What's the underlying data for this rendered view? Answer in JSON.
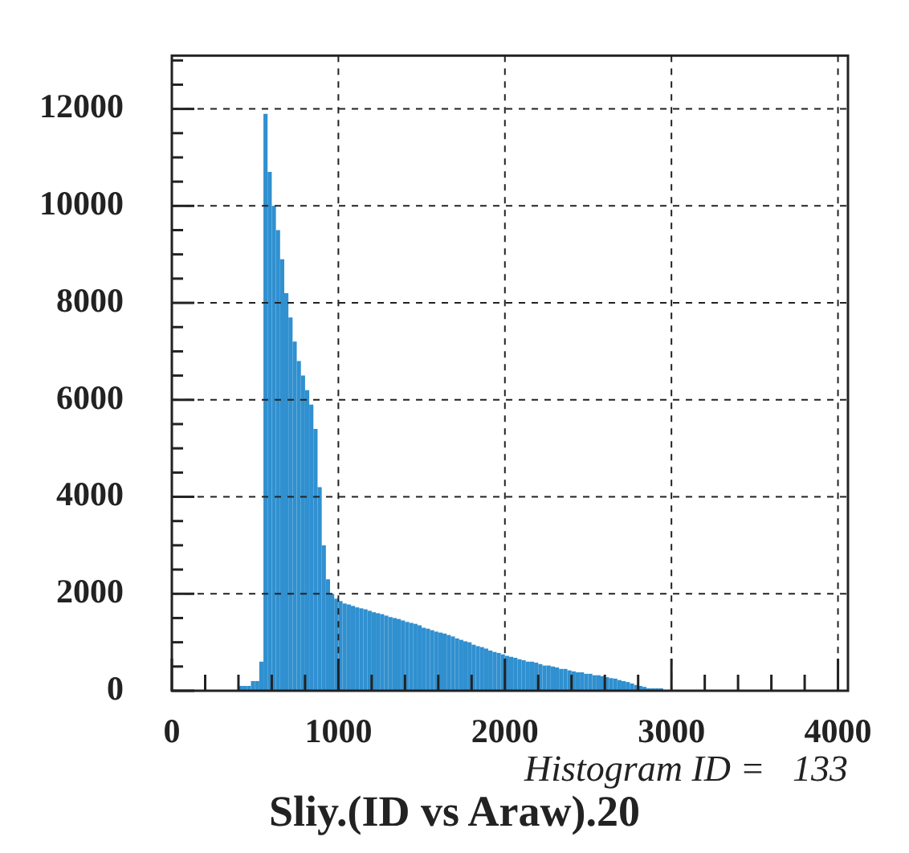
{
  "chart_data": {
    "type": "histogram",
    "title": "Sliy.(ID vs Araw).20",
    "annotations": [
      "Histogram ID =   133"
    ],
    "bins": [
      400,
      425,
      450,
      475,
      500,
      525,
      550,
      575,
      600,
      625,
      650,
      675,
      700,
      725,
      750,
      775,
      800,
      825,
      850,
      875,
      900,
      925,
      950,
      975,
      1000,
      1025,
      1050,
      1075,
      1100,
      1125,
      1150,
      1175,
      1200,
      1225,
      1250,
      1275,
      1300,
      1325,
      1350,
      1375,
      1400,
      1425,
      1450,
      1475,
      1500,
      1525,
      1550,
      1575,
      1600,
      1625,
      1650,
      1675,
      1700,
      1725,
      1750,
      1775,
      1800,
      1825,
      1850,
      1875,
      1900,
      1925,
      1950,
      1975,
      2000,
      2025,
      2050,
      2075,
      2100,
      2125,
      2150,
      2175,
      2200,
      2225,
      2250,
      2275,
      2300,
      2325,
      2350,
      2375,
      2400,
      2425,
      2450,
      2475,
      2500,
      2525,
      2550,
      2575,
      2600,
      2625,
      2650,
      2675,
      2700,
      2725,
      2750,
      2775,
      2800,
      2825,
      2850,
      2875,
      2900,
      2925,
      2950
    ],
    "values": [
      100,
      100,
      100,
      200,
      200,
      600,
      11900,
      10700,
      10000,
      9500,
      8900,
      8200,
      7700,
      7200,
      6800,
      6500,
      6200,
      5900,
      5400,
      4200,
      3000,
      2300,
      2000,
      1900,
      1850,
      1800,
      1780,
      1750,
      1720,
      1700,
      1680,
      1650,
      1620,
      1600,
      1580,
      1550,
      1520,
      1500,
      1480,
      1450,
      1420,
      1400,
      1380,
      1350,
      1300,
      1280,
      1250,
      1220,
      1200,
      1180,
      1150,
      1120,
      1080,
      1050,
      1020,
      1000,
      950,
      920,
      900,
      870,
      830,
      800,
      780,
      750,
      720,
      700,
      680,
      650,
      630,
      600,
      600,
      580,
      550,
      520,
      520,
      500,
      480,
      450,
      450,
      420,
      400,
      380,
      380,
      350,
      350,
      320,
      320,
      300,
      280,
      260,
      250,
      220,
      200,
      180,
      150,
      120,
      100,
      80,
      50,
      50,
      50,
      50
    ],
    "color": "#3090d0",
    "xlim": [
      0,
      4060
    ],
    "ylim": [
      0,
      13100
    ],
    "xticks": [
      0,
      {
        "value": 200,
        "label": null
      },
      {
        "value": 400,
        "label": null
      },
      {
        "value": 600,
        "label": null
      },
      {
        "value": 800,
        "label": null
      },
      1000,
      {
        "value": 1200,
        "label": null
      },
      {
        "value": 1400,
        "label": null
      },
      {
        "value": 1600,
        "label": null
      },
      {
        "value": 1800,
        "label": null
      },
      2000,
      {
        "value": 2200,
        "label": null
      },
      {
        "value": 2400,
        "label": null
      },
      {
        "value": 2600,
        "label": null
      },
      {
        "value": 2800,
        "label": null
      },
      3000,
      {
        "value": 3200,
        "label": null
      },
      {
        "value": 3400,
        "label": null
      },
      {
        "value": 3600,
        "label": null
      },
      {
        "value": 3800,
        "label": null
      },
      4000
    ],
    "yticks": [
      0,
      {
        "value": 500,
        "label": null
      },
      {
        "value": 1000,
        "label": null
      },
      {
        "value": 1500,
        "label": null
      },
      2000,
      {
        "value": 2500,
        "label": null
      },
      {
        "value": 3000,
        "label": null
      },
      {
        "value": 3500,
        "label": null
      },
      4000,
      {
        "value": 4500,
        "label": null
      },
      {
        "value": 5000,
        "label": null
      },
      {
        "value": 5500,
        "label": null
      },
      6000,
      {
        "value": 6500,
        "label": null
      },
      {
        "value": 7000,
        "label": null
      },
      {
        "value": 7500,
        "label": null
      },
      8000,
      {
        "value": 8500,
        "label": null
      },
      {
        "value": 9000,
        "label": null
      },
      {
        "value": 9500,
        "label": null
      },
      10000,
      {
        "value": 10500,
        "label": null
      },
      {
        "value": 11000,
        "label": null
      },
      {
        "value": 11500,
        "label": null
      },
      12000,
      {
        "value": 12500,
        "label": null
      },
      {
        "value": 13000,
        "label": null
      }
    ],
    "grid": true
  }
}
